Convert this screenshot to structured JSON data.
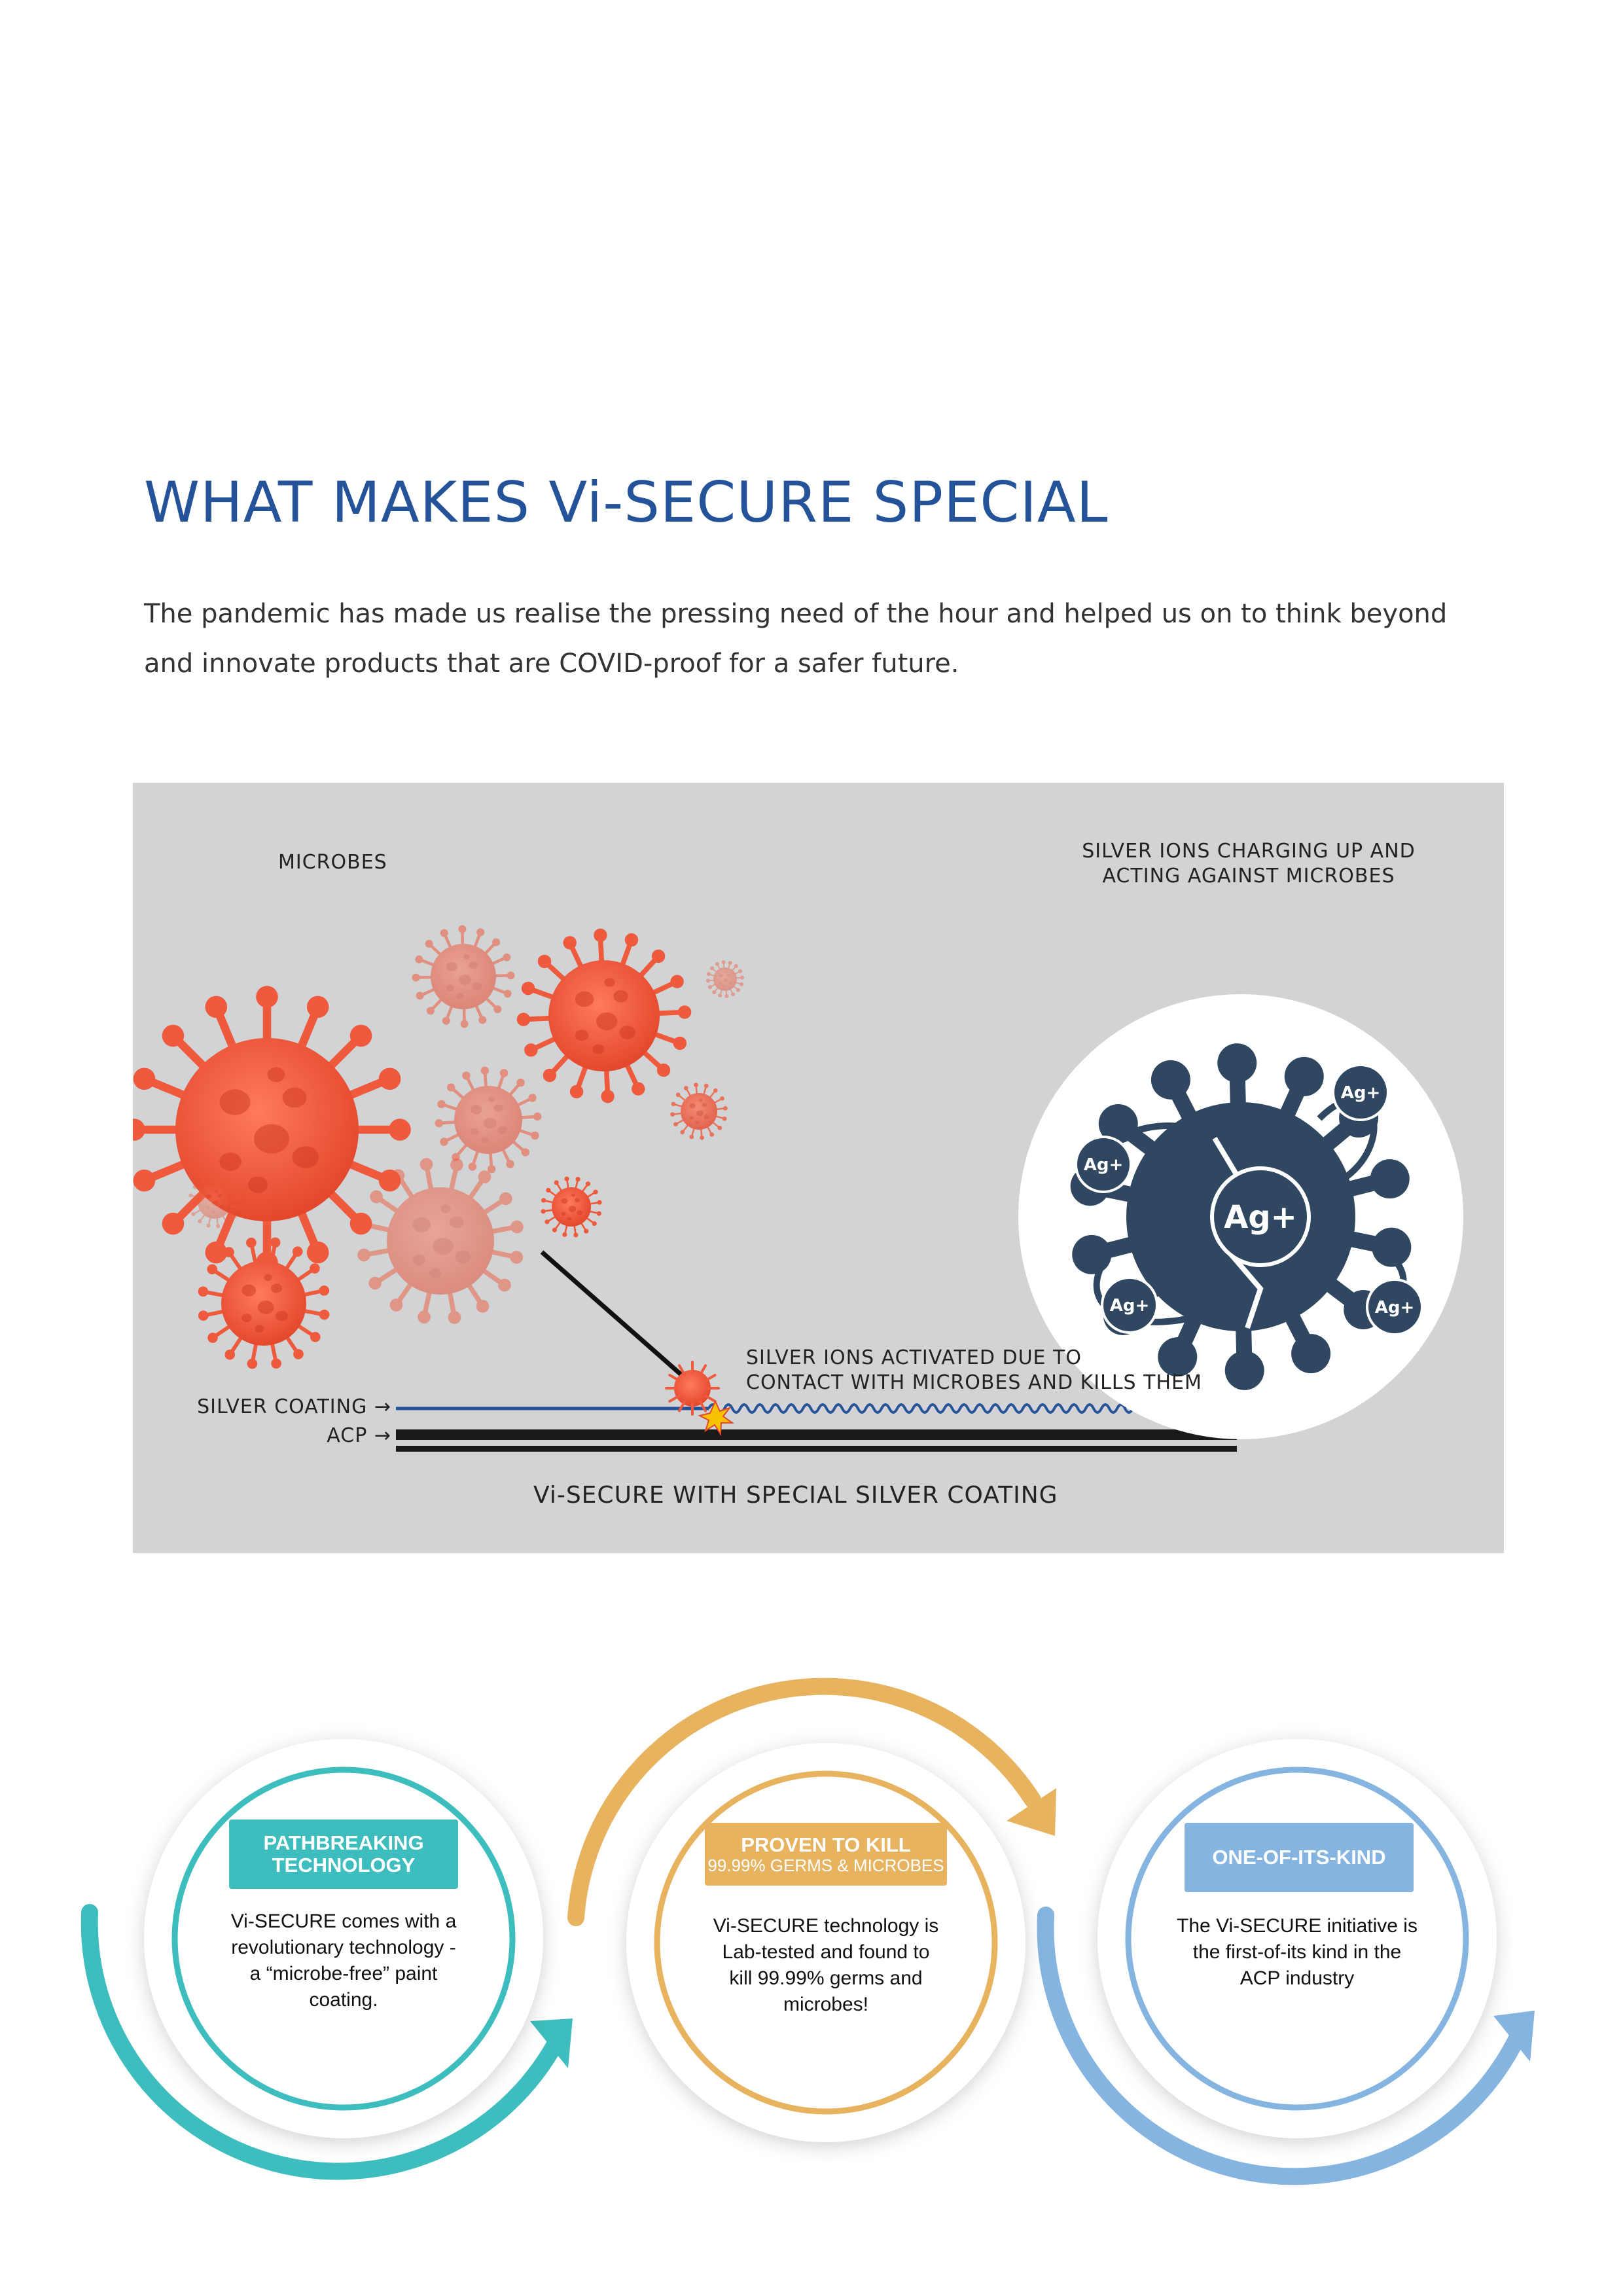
{
  "heading": "WHAT MAKES Vi-SECURE SPECIAL",
  "intro": [
    "The pandemic has made us realise the pressing need of the hour and helped us on to think beyond",
    "and innovate products that are COVID-proof for a safer future."
  ],
  "diagram": {
    "microbes_label": "MICROBES",
    "ions_label": [
      "SILVER IONS CHARGING UP AND",
      "ACTING AGAINST MICROBES"
    ],
    "activated_label": [
      "SILVER IONS ACTIVATED DUE TO",
      "CONTACT WITH MICROBES AND KILLS THEM"
    ],
    "silver_coating_label": "SILVER COATING →",
    "acp_label": "ACP →",
    "caption": "Vi-SECURE WITH SPECIAL SILVER COATING",
    "ion_labels": [
      "Ag+",
      "Ag+",
      "Ag+",
      "Ag+",
      "Ag+"
    ]
  },
  "circles": [
    {
      "badge": [
        "PATHBREAKING",
        "TECHNOLOGY"
      ],
      "badge_sub": "",
      "text": [
        "Vi-SECURE comes with a",
        "revolutionary technology -",
        "a “microbe-free” paint",
        "coating."
      ],
      "color": "#3dbdbd"
    },
    {
      "badge": [
        "PROVEN TO KILL"
      ],
      "badge_sub": "99.99% GERMS & MICROBES",
      "text": [
        "Vi-SECURE technology is",
        "Lab-tested and found to",
        "kill 99.99% germs and",
        "microbes!"
      ],
      "color": "#e8b35f"
    },
    {
      "badge": [
        "ONE-OF-ITS-KIND"
      ],
      "badge_sub": "",
      "text": [
        "The Vi-SECURE initiative is",
        "the first-of-its kind in the",
        "ACP industry"
      ],
      "color": "#85b4e0"
    }
  ],
  "colors": {
    "heading": "#25539a",
    "panel_bg": "#d2d3d5",
    "microbe": "#ef5a3c",
    "ion_navy": "#2f4760",
    "teal": "#3dbdbd",
    "gold": "#e8b35f",
    "blue": "#85b4e0"
  }
}
